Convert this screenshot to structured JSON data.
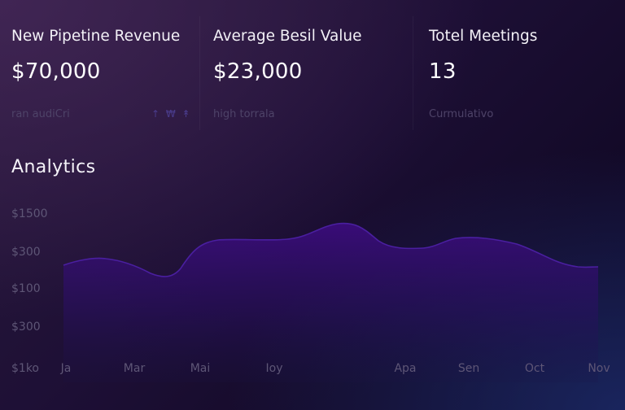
{
  "kpis": [
    {
      "title": "New Pipetine Revenue",
      "value": "$70,000",
      "sub": "ran audiCri",
      "trend": "↑ ₩ ↟"
    },
    {
      "title": "Average Besil Value",
      "value": "$23,000",
      "sub": "high torrala",
      "trend": ""
    },
    {
      "title": "Totel Meetings",
      "value": "13",
      "sub": "Curmulativo",
      "trend": ""
    }
  ],
  "analytics": {
    "title": "Analytics"
  },
  "chart_data": {
    "type": "area",
    "title": "Analytics",
    "xlabel": "",
    "ylabel": "",
    "y_tick_labels": [
      "$1500",
      "$300",
      "$100",
      "$300",
      "$1ko"
    ],
    "x_tick_labels": [
      "Ja",
      "Mar",
      "Mai",
      "Ioy",
      "Apa",
      "Sen",
      "Oct",
      "Nov"
    ],
    "grid": false,
    "colors": {
      "line": "#4a1fa0",
      "fill": "#3a0d78"
    }
  }
}
